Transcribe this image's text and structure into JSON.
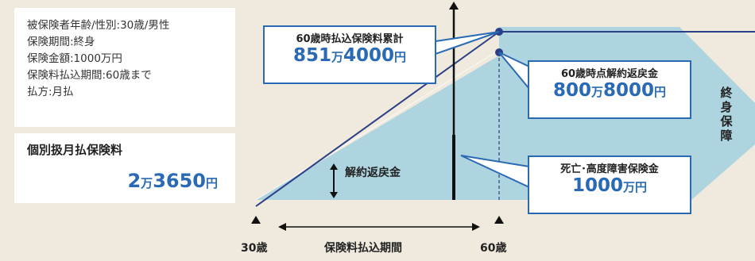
{
  "policy_info": {
    "lines": [
      "被保険者年齢/性別:30歳/男性",
      "保険期間:終身",
      "保険金額:1000万円",
      "保険料払込期間:60歳まで",
      "払方:月払"
    ]
  },
  "monthly_premium": {
    "title": "個別扱月払保険料",
    "amount_a": "2",
    "unit_a": "万",
    "amount_b": "3650",
    "unit_b": "円"
  },
  "accumulated_premium": {
    "label": "60歳時払込保険料累計",
    "amount_a": "851",
    "unit_a": "万",
    "amount_b": "4000",
    "unit_b": "円"
  },
  "surrender_value": {
    "label": "60歳時点解約返戻金",
    "amount_a": "800",
    "unit_a": "万",
    "amount_b": "8000",
    "unit_b": "円"
  },
  "death_benefit": {
    "label": "死亡･高度障害保険金",
    "amount_a": "1000",
    "unit_a": "万円"
  },
  "lifetime_label": [
    "終",
    "身",
    "保",
    "障"
  ],
  "area_label": "解約返戻金",
  "axis": {
    "start_age": "30歳",
    "end_age": "60歳",
    "period_label": "保険料払込期間"
  },
  "colors": {
    "area_fill": "#aed4df",
    "accent_blue": "#2a6ab4",
    "navy_line": "#2b3f86",
    "background": "#efe9de"
  }
}
